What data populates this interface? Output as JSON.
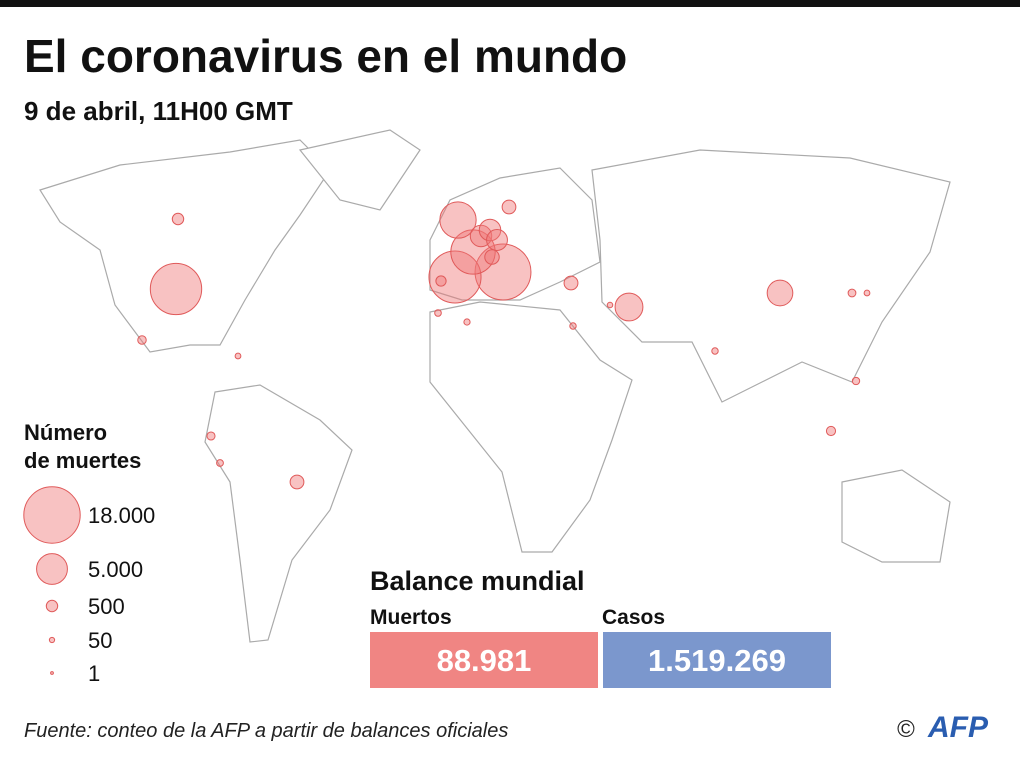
{
  "header": {
    "title": "El coronavirus en el mundo",
    "subtitle": "9 de abril, 11H00 GMT"
  },
  "map": {
    "bubbles": [
      14800,
      17669,
      15238,
      10869,
      7097,
      2240,
      2255,
      2107,
      3993,
      3335,
      800,
      500,
      812,
      793,
      900,
      380,
      280,
      150,
      100,
      180,
      230,
      200,
      120,
      90,
      100,
      110,
      70,
      60,
      70
    ]
  },
  "legend": {
    "title_line1": "Número",
    "title_line2": "de muertes",
    "entries": [
      {
        "value": 18000,
        "label": "18.000"
      },
      {
        "value": 5000,
        "label": "5.000"
      },
      500,
      50,
      1
    ]
  },
  "balance": {
    "title": "Balance mundial",
    "deaths_label": "Muertos",
    "deaths": "88.981",
    "cases_label": "Casos",
    "cases": "1.519.269"
  },
  "footer": {
    "source": "Fuente: conteo de la AFP a partir de balances oficiales",
    "copyright": "©",
    "logo": "AFP"
  }
}
